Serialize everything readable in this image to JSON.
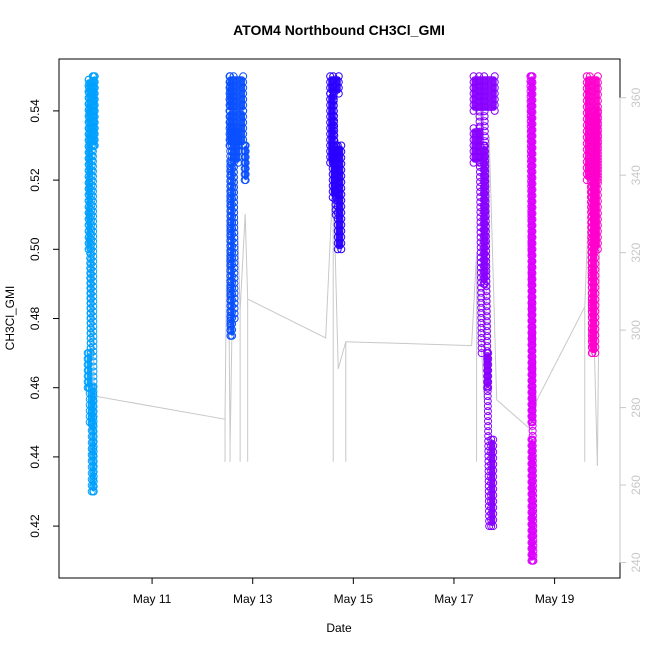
{
  "chart_data": {
    "type": "scatter",
    "title": "ATOM4 Northbound CH3Cl_GMI",
    "xlabel": "Date",
    "ylabel": "CH3Cl_GMI",
    "x_ticks": [
      "May 11",
      "May 13",
      "May 15",
      "May 17",
      "May 19"
    ],
    "x_tick_days": [
      11,
      13,
      15,
      17,
      19
    ],
    "xlim_days": [
      9.15,
      20.3
    ],
    "ylim": [
      0.405,
      0.555
    ],
    "y_ticks": [
      0.42,
      0.44,
      0.46,
      0.48,
      0.5,
      0.52,
      0.54
    ],
    "secondary_axis": {
      "ylim": [
        236,
        370
      ],
      "ticks": [
        240,
        260,
        280,
        300,
        320,
        340,
        360
      ],
      "color": "#c8c8c8"
    },
    "secondary_line": {
      "color": "#c8c8c8",
      "points": [
        [
          9.75,
          360
        ],
        [
          9.85,
          283
        ],
        [
          12.45,
          277
        ],
        [
          12.5,
          342
        ],
        [
          12.55,
          270
        ],
        [
          12.65,
          350
        ],
        [
          12.75,
          305
        ],
        [
          12.85,
          330
        ],
        [
          12.9,
          308
        ],
        [
          14.45,
          298
        ],
        [
          14.6,
          340
        ],
        [
          14.7,
          290
        ],
        [
          14.85,
          297
        ],
        [
          17.35,
          296
        ],
        [
          17.45,
          320
        ],
        [
          17.6,
          282
        ],
        [
          17.7,
          350
        ],
        [
          17.85,
          282
        ],
        [
          18.55,
          274
        ],
        [
          18.65,
          282
        ],
        [
          19.6,
          306
        ],
        [
          19.7,
          340
        ],
        [
          19.85,
          265
        ],
        [
          19.9,
          330
        ]
      ]
    },
    "series": [
      {
        "color": "#00a0ff",
        "x_start": 9.7,
        "x_end": 9.9,
        "y_range": [
          0.429,
          0.55
        ],
        "blocks": [
          [
            9.7,
            9.78,
            0.5,
            0.549
          ],
          [
            9.7,
            9.76,
            0.46,
            0.47
          ],
          [
            9.76,
            9.8,
            0.45,
            0.46
          ],
          [
            9.79,
            9.84,
            0.43,
            0.46
          ],
          [
            9.8,
            9.9,
            0.53,
            0.55
          ]
        ],
        "line_segments": [
          [
            9.75,
            0.548,
            9.78,
            0.47
          ],
          [
            9.78,
            0.47,
            9.8,
            0.53
          ],
          [
            9.82,
            0.55,
            9.84,
            0.43
          ]
        ]
      },
      {
        "color": "#0a50ff",
        "x_start": 12.5,
        "x_end": 12.9,
        "y_range": [
          0.475,
          0.55
        ],
        "blocks": [
          [
            12.5,
            12.85,
            0.54,
            0.55
          ],
          [
            12.5,
            12.85,
            0.53,
            0.54
          ],
          [
            12.55,
            12.75,
            0.525,
            0.535
          ],
          [
            12.55,
            12.6,
            0.475,
            0.525
          ],
          [
            12.82,
            12.88,
            0.52,
            0.53
          ]
        ],
        "line_segments": [
          [
            12.55,
            0.55,
            12.56,
            0.475
          ],
          [
            12.62,
            0.55,
            12.64,
            0.48
          ]
        ]
      },
      {
        "color": "#2a00ff",
        "x_start": 14.5,
        "x_end": 14.8,
        "y_range": [
          0.5,
          0.55
        ],
        "blocks": [
          [
            14.5,
            14.75,
            0.545,
            0.55
          ],
          [
            14.5,
            14.65,
            0.525,
            0.545
          ],
          [
            14.55,
            14.7,
            0.515,
            0.53
          ],
          [
            14.65,
            14.8,
            0.5,
            0.53
          ]
        ],
        "line_segments": [
          [
            14.6,
            0.55,
            14.65,
            0.51
          ]
        ]
      },
      {
        "color": "#8800ff",
        "x_start": 17.3,
        "x_end": 17.8,
        "y_range": [
          0.417,
          0.55
        ],
        "blocks": [
          [
            17.35,
            17.85,
            0.54,
            0.55
          ],
          [
            17.35,
            17.55,
            0.525,
            0.535
          ],
          [
            17.55,
            17.65,
            0.49,
            0.53
          ],
          [
            17.62,
            17.72,
            0.46,
            0.47
          ],
          [
            17.7,
            17.82,
            0.42,
            0.445
          ]
        ],
        "line_segments": [
          [
            17.5,
            0.55,
            17.55,
            0.47
          ],
          [
            17.6,
            0.55,
            17.7,
            0.42
          ]
        ]
      },
      {
        "color": "#dd00ff",
        "x_start": 18.5,
        "x_end": 18.65,
        "y_range": [
          0.41,
          0.55
        ],
        "blocks": [
          [
            18.5,
            18.6,
            0.41,
            0.445
          ],
          [
            18.5,
            18.6,
            0.45,
            0.55
          ]
        ],
        "line_segments": [
          [
            18.52,
            0.55,
            18.58,
            0.41
          ]
        ]
      },
      {
        "color": "#ff00cc",
        "x_start": 19.6,
        "x_end": 19.9,
        "y_range": [
          0.47,
          0.55
        ],
        "blocks": [
          [
            19.6,
            19.9,
            0.52,
            0.55
          ],
          [
            19.7,
            19.85,
            0.47,
            0.52
          ],
          [
            19.75,
            19.9,
            0.5,
            0.54
          ]
        ],
        "line_segments": [
          [
            19.7,
            0.55,
            19.75,
            0.47
          ]
        ]
      }
    ]
  }
}
